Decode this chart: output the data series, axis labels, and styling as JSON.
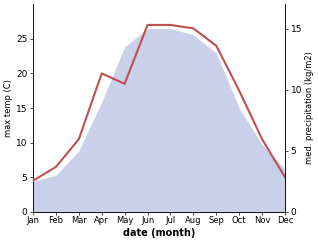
{
  "months": [
    "Jan",
    "Feb",
    "Mar",
    "Apr",
    "May",
    "Jun",
    "Jul",
    "Aug",
    "Sep",
    "Oct",
    "Nov",
    "Dec"
  ],
  "month_positions": [
    1,
    2,
    3,
    4,
    5,
    6,
    7,
    8,
    9,
    10,
    11,
    12
  ],
  "temperature": [
    4.5,
    6.5,
    10.5,
    20.0,
    18.5,
    27.0,
    27.0,
    26.5,
    24.0,
    17.5,
    10.5,
    5.0
  ],
  "precipitation": [
    2.5,
    3.0,
    5.0,
    9.0,
    13.5,
    15.0,
    15.0,
    14.5,
    13.0,
    8.5,
    5.5,
    3.5
  ],
  "temp_color": "#c05050",
  "precip_color_fill": "#c8d0ea",
  "temp_ylim": [
    0,
    30
  ],
  "precip_ylim": [
    0,
    17
  ],
  "temp_yticks": [
    0,
    5,
    10,
    15,
    20,
    25
  ],
  "precip_yticks": [
    0,
    5,
    10,
    15
  ],
  "ylabel_left": "max temp (C)",
  "ylabel_right": "med. precipitation (kg/m2)",
  "xlabel": "date (month)",
  "background_color": "#ffffff"
}
